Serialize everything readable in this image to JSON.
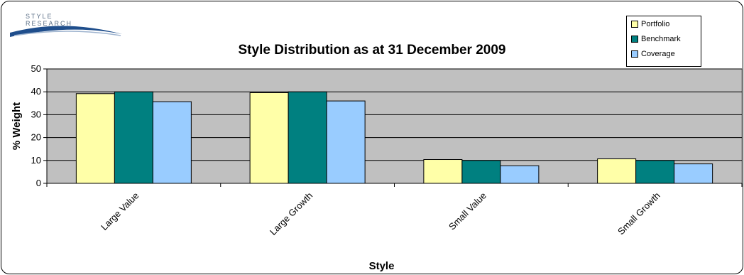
{
  "logo": {
    "line1": "STYLE",
    "line2": "RESEARCH"
  },
  "chart_data": {
    "type": "bar",
    "title": "Style Distribution as at 31 December 2009",
    "xlabel": "Style",
    "ylabel": "% Weight",
    "ylim": [
      0,
      50
    ],
    "yticks": [
      0,
      10,
      20,
      30,
      40,
      50
    ],
    "grid": true,
    "legend_position": "top-right",
    "categories": [
      "Large Value",
      "Large Growth",
      "Small Value",
      "Small Growth"
    ],
    "series": [
      {
        "name": "Portfolio",
        "color": "#ffffa8",
        "values": [
          39.2,
          39.6,
          10.4,
          10.7
        ]
      },
      {
        "name": "Benchmark",
        "color": "#008080",
        "values": [
          40.0,
          40.0,
          10.0,
          10.0
        ]
      },
      {
        "name": "Coverage",
        "color": "#99ccff",
        "values": [
          35.7,
          36.0,
          7.7,
          8.5
        ]
      }
    ],
    "plot_background": "#c0c0c0"
  }
}
